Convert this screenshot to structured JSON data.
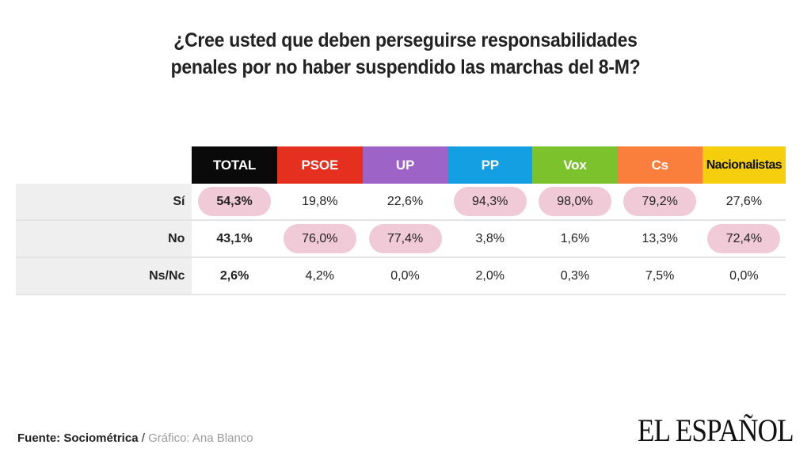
{
  "chart_data": {
    "type": "table",
    "title_lines": [
      "¿Cree usted que deben perseguirse responsabilidades",
      "penales por no haber suspendido las marchas del 8-M?"
    ],
    "columns": [
      {
        "name": "TOTAL",
        "color": "#0a0a0a",
        "text_color": "#ffffff"
      },
      {
        "name": "PSOE",
        "color": "#e6301f",
        "text_color": "#ffffff"
      },
      {
        "name": "UP",
        "color": "#9e63c7",
        "text_color": "#ffffff"
      },
      {
        "name": "PP",
        "color": "#159fe3",
        "text_color": "#ffffff"
      },
      {
        "name": "Vox",
        "color": "#7cc22c",
        "text_color": "#ffffff"
      },
      {
        "name": "Cs",
        "color": "#fb7f3c",
        "text_color": "#ffffff"
      },
      {
        "name": "Nacionalistas",
        "color": "#f5cf0d",
        "text_color": "#111111"
      }
    ],
    "rows": [
      {
        "label": "Sí",
        "display": [
          "54,3%",
          "19,8%",
          "22,6%",
          "94,3%",
          "98,0%",
          "79,2%",
          "27,6%"
        ],
        "values": [
          54.3,
          19.8,
          22.6,
          94.3,
          98.0,
          79.2,
          27.6
        ]
      },
      {
        "label": "No",
        "display": [
          "43,1%",
          "76,0%",
          "77,4%",
          "3,8%",
          "1,6%",
          "13,3%",
          "72,4%"
        ],
        "values": [
          43.1,
          76.0,
          77.4,
          3.8,
          1.6,
          13.3,
          72.4
        ]
      },
      {
        "label": "Ns/Nc",
        "display": [
          "2,6%",
          "4,2%",
          "0,0%",
          "2,0%",
          "0,3%",
          "7,5%",
          "0,0%"
        ],
        "values": [
          2.6,
          4.2,
          0.0,
          2.0,
          0.3,
          7.5,
          0.0
        ]
      }
    ],
    "highlight_color": "#f0cad7"
  },
  "footer": {
    "source_label": "Fuente: Sociométrica",
    "separator": " / ",
    "credit": "Gráfico: Ana Blanco"
  },
  "logo": {
    "text": "EL ESPAÑOL"
  }
}
